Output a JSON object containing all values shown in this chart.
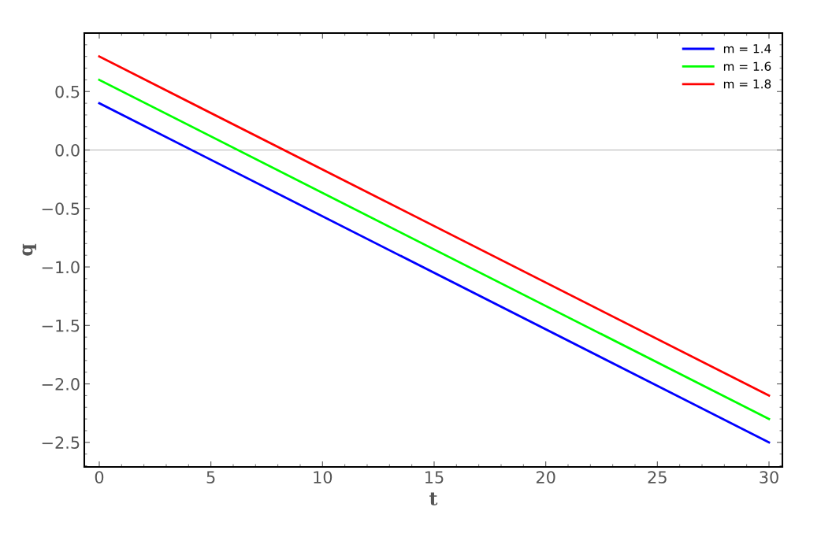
{
  "chart_data": {
    "type": "line",
    "xlabel": "t",
    "ylabel": "q",
    "x": [
      0,
      30
    ],
    "series": [
      {
        "name": "m = 1.4",
        "color": "#0000ff",
        "values": [
          0.4,
          -2.5
        ]
      },
      {
        "name": "m = 1.6",
        "color": "#00ff00",
        "values": [
          0.6,
          -2.3
        ]
      },
      {
        "name": "m = 1.8",
        "color": "#ff0000",
        "values": [
          0.8,
          -2.1
        ]
      }
    ],
    "xlim": [
      -0.67,
      30.6
    ],
    "ylim": [
      -2.71,
      1.0
    ],
    "xticks": [
      0,
      5,
      10,
      15,
      20,
      25,
      30
    ],
    "yticks": [
      {
        "value": 0.5,
        "label": "0.5"
      },
      {
        "value": 0,
        "label": "0.0"
      },
      {
        "value": -0.5,
        "label": "−0.5"
      },
      {
        "value": -1,
        "label": "−1.0"
      },
      {
        "value": -1.5,
        "label": "−1.5"
      },
      {
        "value": -2,
        "label": "−2.0"
      },
      {
        "value": -2.5,
        "label": "−2.5"
      }
    ],
    "ref_lines": [
      {
        "axis": "y",
        "value": 0,
        "label": null,
        "color": "#b3b3b3"
      }
    ],
    "grid": false,
    "legend": "top right",
    "marker": "none",
    "line_style": "solid"
  }
}
